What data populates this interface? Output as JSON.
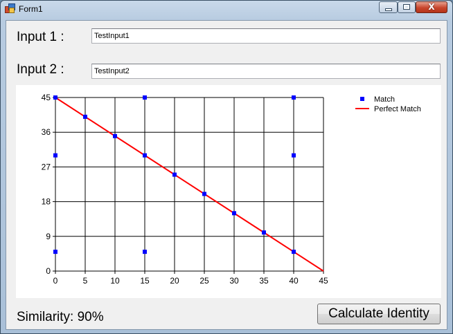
{
  "window": {
    "title": "Form1"
  },
  "input1": {
    "label": "Input 1 :",
    "value": "TestInput1"
  },
  "input2": {
    "label": "Input 2 :",
    "value": "TestInput2"
  },
  "status": {
    "similarity": "Similarity: 90%"
  },
  "buttons": {
    "calculate": "Calculate Identity",
    "close_glyph": "X"
  },
  "chart_data": {
    "type": "scatter",
    "xlim": [
      0,
      45
    ],
    "ylim": [
      0,
      45
    ],
    "x_ticks": [
      0,
      5,
      10,
      15,
      20,
      25,
      30,
      35,
      40,
      45
    ],
    "y_ticks": [
      0,
      9,
      18,
      27,
      36,
      45
    ],
    "grid": true,
    "legend_position": "top-right",
    "series": [
      {
        "name": "Match",
        "kind": "scatter",
        "color": "#0000ff",
        "points": [
          [
            0,
            45
          ],
          [
            5,
            40
          ],
          [
            10,
            35
          ],
          [
            15,
            30
          ],
          [
            20,
            25
          ],
          [
            25,
            20
          ],
          [
            30,
            15
          ],
          [
            35,
            10
          ],
          [
            40,
            5
          ],
          [
            15,
            45
          ],
          [
            40,
            45
          ],
          [
            0,
            30
          ],
          [
            40,
            30
          ],
          [
            0,
            5
          ],
          [
            15,
            5
          ]
        ]
      },
      {
        "name": "Perfect Match",
        "kind": "line",
        "color": "#ff0000",
        "points": [
          [
            0,
            45
          ],
          [
            45,
            0
          ]
        ]
      }
    ]
  }
}
